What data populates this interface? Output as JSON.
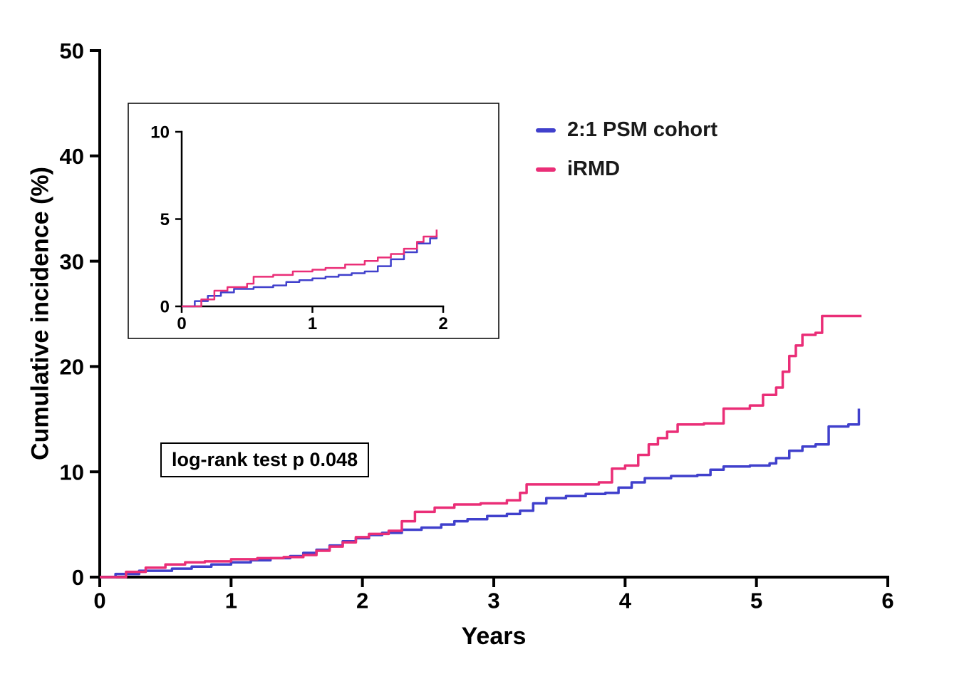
{
  "chart_data": {
    "type": "line",
    "subtype": "step-cumulative-incidence",
    "title": "",
    "xlabel": "Years",
    "ylabel": "Cumulative incidence (%)",
    "xlim": [
      0,
      6
    ],
    "ylim": [
      0,
      50
    ],
    "xticks": [
      0,
      1,
      2,
      3,
      4,
      5,
      6
    ],
    "yticks": [
      0,
      10,
      20,
      30,
      40,
      50
    ],
    "grid": "off",
    "legend_position": "top-right",
    "annotation": "log-rank test p 0.048",
    "legend": [
      {
        "label": "2:1 PSM cohort",
        "color": "#4040CC"
      },
      {
        "label": "iRMD",
        "color": "#EA2E77"
      }
    ],
    "series": [
      {
        "name": "2:1 PSM cohort",
        "color": "#4040CC",
        "x": [
          0,
          0.12,
          0.3,
          0.55,
          0.7,
          0.85,
          1.0,
          1.15,
          1.3,
          1.45,
          1.55,
          1.65,
          1.75,
          1.85,
          1.95,
          2.05,
          2.15,
          2.3,
          2.45,
          2.6,
          2.7,
          2.8,
          2.95,
          3.1,
          3.2,
          3.3,
          3.4,
          3.55,
          3.7,
          3.85,
          3.95,
          4.05,
          4.15,
          4.35,
          4.55,
          4.65,
          4.75,
          4.95,
          5.1,
          5.15,
          5.25,
          5.35,
          5.45,
          5.55,
          5.7,
          5.78
        ],
        "y": [
          0,
          0.3,
          0.6,
          0.8,
          1.0,
          1.2,
          1.4,
          1.6,
          1.8,
          2.0,
          2.3,
          2.6,
          3.0,
          3.4,
          3.7,
          4.0,
          4.2,
          4.5,
          4.7,
          5.0,
          5.3,
          5.5,
          5.8,
          6.0,
          6.3,
          7.0,
          7.5,
          7.7,
          7.9,
          8.0,
          8.5,
          9.0,
          9.4,
          9.6,
          9.7,
          10.2,
          10.5,
          10.6,
          10.8,
          11.3,
          12.0,
          12.4,
          12.6,
          14.3,
          14.5,
          16.0
        ]
      },
      {
        "name": "iRMD",
        "color": "#EA2E77",
        "x": [
          0,
          0.2,
          0.35,
          0.5,
          0.65,
          0.8,
          1.0,
          1.2,
          1.4,
          1.55,
          1.65,
          1.75,
          1.85,
          1.95,
          2.05,
          2.2,
          2.3,
          2.4,
          2.55,
          2.7,
          2.9,
          3.1,
          3.2,
          3.25,
          3.8,
          3.9,
          4.0,
          4.1,
          4.18,
          4.25,
          4.32,
          4.4,
          4.6,
          4.75,
          4.95,
          5.05,
          5.15,
          5.2,
          5.25,
          5.3,
          5.35,
          5.45,
          5.5,
          5.8
        ],
        "y": [
          0,
          0.5,
          0.9,
          1.2,
          1.4,
          1.5,
          1.7,
          1.8,
          1.9,
          2.1,
          2.5,
          2.9,
          3.3,
          3.8,
          4.1,
          4.4,
          5.3,
          6.2,
          6.6,
          6.9,
          7.0,
          7.3,
          8.0,
          8.8,
          9.0,
          10.3,
          10.6,
          11.6,
          12.6,
          13.2,
          13.8,
          14.5,
          14.6,
          16.0,
          16.3,
          17.3,
          18.0,
          19.5,
          21.0,
          22.0,
          23.0,
          23.2,
          24.8,
          24.8
        ]
      }
    ],
    "inset": {
      "xlim": [
        0,
        2
      ],
      "ylim": [
        0,
        10
      ],
      "xticks": [
        0,
        1,
        2
      ],
      "yticks": [
        0,
        5,
        10
      ],
      "series": [
        {
          "name": "2:1 PSM cohort",
          "color": "#4040CC",
          "x": [
            0,
            0.1,
            0.2,
            0.3,
            0.4,
            0.55,
            0.7,
            0.8,
            0.9,
            1.0,
            1.1,
            1.2,
            1.3,
            1.4,
            1.5,
            1.6,
            1.7,
            1.8,
            1.9,
            1.95
          ],
          "y": [
            0,
            0.3,
            0.6,
            0.8,
            1.0,
            1.1,
            1.2,
            1.4,
            1.5,
            1.6,
            1.7,
            1.8,
            1.9,
            2.0,
            2.3,
            2.7,
            3.1,
            3.6,
            3.9,
            4.1
          ]
        },
        {
          "name": "iRMD",
          "color": "#EA2E77",
          "x": [
            0,
            0.15,
            0.25,
            0.35,
            0.5,
            0.55,
            0.7,
            0.85,
            1.0,
            1.1,
            1.25,
            1.4,
            1.5,
            1.6,
            1.7,
            1.8,
            1.85,
            1.95
          ],
          "y": [
            0,
            0.4,
            0.9,
            1.1,
            1.3,
            1.7,
            1.8,
            2.0,
            2.1,
            2.2,
            2.4,
            2.6,
            2.8,
            3.0,
            3.3,
            3.7,
            4.0,
            4.4
          ]
        }
      ]
    }
  }
}
